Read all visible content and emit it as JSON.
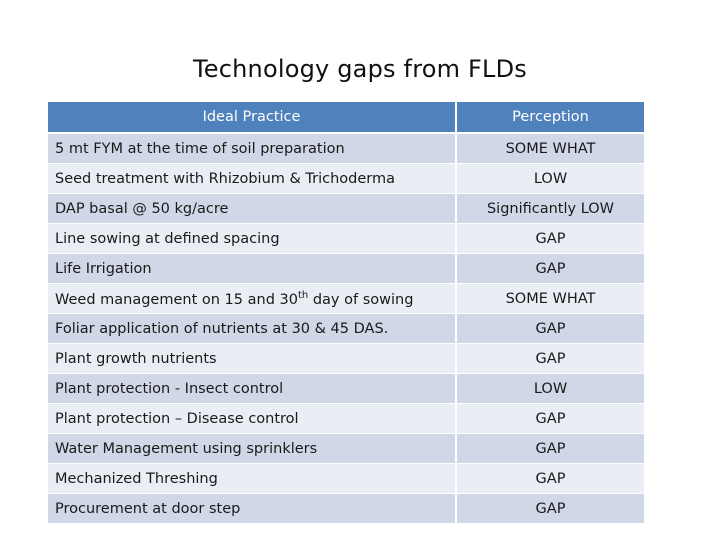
{
  "title": "Technology gaps from FLDs",
  "table": {
    "headers": {
      "practice": "Ideal Practice",
      "perception": "Perception"
    },
    "rows": [
      {
        "practice": "5 mt FYM at the time of soil preparation",
        "perception": "SOME WHAT"
      },
      {
        "practice": "Seed treatment with Rhizobium & Trichoderma",
        "perception": "LOW"
      },
      {
        "practice": "DAP basal @ 50 kg/acre",
        "perception": "Significantly LOW"
      },
      {
        "practice": "Line sowing at defined spacing",
        "perception": "GAP"
      },
      {
        "practice": "Life Irrigation",
        "perception": "GAP"
      },
      {
        "practice_pre": "Weed management on 15 and 30",
        "practice_sup": "th",
        "practice_post": " day of sowing",
        "perception": "SOME WHAT"
      },
      {
        "practice": "Foliar application of nutrients at 30 & 45 DAS.",
        "perception": "GAP"
      },
      {
        "practice": "Plant growth nutrients",
        "perception": "GAP"
      },
      {
        "practice": "Plant protection - Insect control",
        "perception": "LOW"
      },
      {
        "practice": "Plant protection – Disease control",
        "perception": "GAP"
      },
      {
        "practice": "Water Management using sprinklers",
        "perception": "GAP"
      },
      {
        "practice": "Mechanized Threshing",
        "perception": "GAP"
      },
      {
        "practice": "Procurement at door step",
        "perception": "GAP"
      }
    ]
  },
  "colors": {
    "header_bg": "#4f81bd",
    "row_dark": "#d0d8e8",
    "row_light": "#e9edf4"
  }
}
